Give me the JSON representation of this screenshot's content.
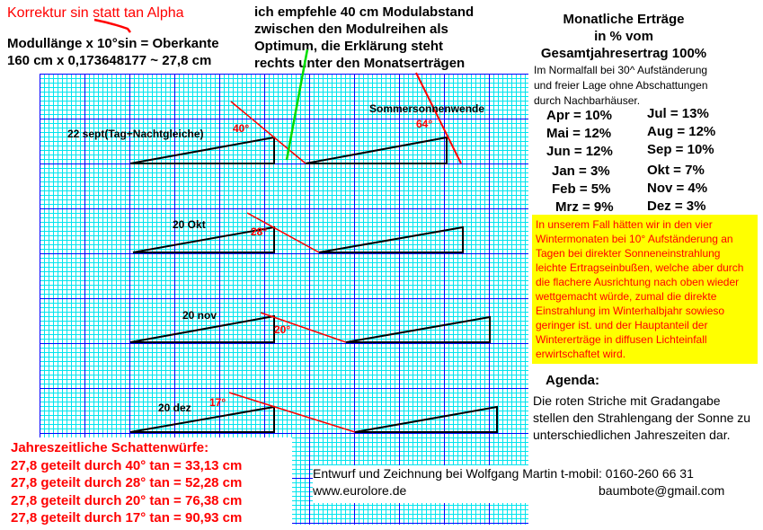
{
  "correction_note": "Korrektur  sin statt tan Alpha",
  "formula": {
    "line1": "Modullänge x 10°sin = Oberkante",
    "line2": "160 cm x 0,173648177 ~ 27,8 cm"
  },
  "recommendation": [
    "ich empfehle 40 cm Modulabstand",
    "zwischen den Modulreihen als",
    "Optimum, die Erklärung steht",
    "rechts unter den Monatserträgen"
  ],
  "diagram": {
    "rows": [
      {
        "label": "22 sept(Tag+Nachtgleiche)",
        "angle": "40°"
      },
      {
        "label": "20 Okt",
        "angle": "28°"
      },
      {
        "label": "20 nov",
        "angle": "20°"
      },
      {
        "label": "20 dez",
        "angle": "17°"
      }
    ],
    "summer": {
      "label": "Sommersonnenwende",
      "angle": "64°"
    },
    "colors": {
      "grid_minor": "#00e5ee",
      "grid_major": "#0000ff",
      "sun_ray": "#ff0000",
      "spacing_line": "#00dd00",
      "module": "#000000"
    }
  },
  "yields": {
    "title": [
      "Monatliche Erträge",
      "in % vom",
      "Gesamtjahresertrag 100%"
    ],
    "note": [
      "Im Normalfall bei 30^ Aufständerung",
      "und freier Lage ohne Abschattungen",
      "durch Nachbarhäuser."
    ],
    "left": [
      "Apr = 10%",
      "Mai = 12%",
      "Jun = 12%",
      "Jan = 3%",
      "Feb = 5%",
      "Mrz = 9%"
    ],
    "right": [
      "Jul = 13%",
      "Aug = 12%",
      "Sep = 10%",
      "Okt = 7%",
      "Nov = 4%",
      "Dez = 3%"
    ]
  },
  "winter_note": "In unserem Fall hätten wir in den vier Wintermonaten bei 10° Aufständerung an Tagen bei direkter Sonneneinstrahlung leichte Ertragseinbußen, welche aber durch die flachere Ausrichtung nach oben wieder wettgemacht würde, zumal die direkte Einstrahlung im Winterhalbjahr sowieso geringer ist. und der Hauptanteil der Wintererträge in diffusen Lichteinfall erwirtschaftet wird.",
  "agenda": {
    "title": "Agenda:",
    "text": "Die roten Striche mit Gradangabe stellen den Strahlengang der Sonne zu unterschiedlichen Jahreszeiten dar."
  },
  "shadows": {
    "title": "Jahreszeitliche Schattenwürfe:",
    "lines": [
      "27,8 geteilt durch 40° tan = 33,13 cm",
      "27,8 geteilt durch 28° tan = 52,28 cm",
      "27,8 geteilt durch 20° tan = 76,38 cm",
      "27,8 geteilt durch 17° tan = 90,93 cm"
    ]
  },
  "credits": {
    "line1": "Entwurf und Zeichnung bei Wolfgang Martin t-mobil: 0160-260 66 31",
    "website": "www.eurolore.de",
    "email": "baumbote@gmail.com"
  }
}
